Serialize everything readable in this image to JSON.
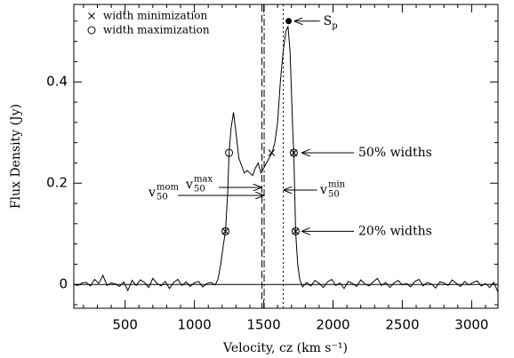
{
  "chart_data": {
    "type": "line",
    "xlabel": "Velocity, cz (km s⁻¹)",
    "ylabel": "Flux Density (Jy)",
    "xlim": [
      130,
      3190
    ],
    "ylim": [
      -0.047,
      0.553
    ],
    "xticks": [
      500,
      1000,
      1500,
      2000,
      2500,
      3000
    ],
    "yticks": [
      0,
      0.2,
      0.4
    ],
    "zero_line": true,
    "color": "#000000",
    "x": [
      130,
      160,
      190,
      220,
      250,
      280,
      310,
      340,
      370,
      400,
      430,
      460,
      490,
      520,
      550,
      580,
      610,
      640,
      670,
      700,
      730,
      760,
      790,
      820,
      850,
      880,
      910,
      940,
      970,
      1000,
      1030,
      1060,
      1090,
      1120,
      1150,
      1170,
      1190,
      1210,
      1224,
      1240,
      1250,
      1265,
      1282,
      1300,
      1320,
      1340,
      1360,
      1380,
      1400,
      1420,
      1440,
      1460,
      1480,
      1500,
      1520,
      1540,
      1560,
      1580,
      1600,
      1620,
      1640,
      1660,
      1675,
      1690,
      1700,
      1710,
      1717,
      1730,
      1745,
      1760,
      1780,
      1810,
      1840,
      1870,
      1900,
      1930,
      1960,
      1990,
      2020,
      2050,
      2080,
      2110,
      2140,
      2170,
      2200,
      2230,
      2260,
      2290,
      2320,
      2350,
      2380,
      2410,
      2440,
      2470,
      2500,
      2530,
      2560,
      2590,
      2620,
      2650,
      2680,
      2710,
      2740,
      2770,
      2800,
      2830,
      2860,
      2890,
      2920,
      2950,
      2980,
      3010,
      3040,
      3070,
      3100,
      3130,
      3160,
      3190
    ],
    "values": [
      0,
      -0.002,
      0.003,
      0.004,
      -0.003,
      0.01,
      0.002,
      0.018,
      -0.002,
      0.003,
      0.001,
      -0.004,
      0.005,
      -0.012,
      0.008,
      -0.002,
      0.009,
      0.004,
      -0.006,
      0.012,
      0.002,
      -0.003,
      0.006,
      -0.008,
      0.004,
      0.01,
      -0.002,
      0.005,
      -0.004,
      0.003,
      0.006,
      -0.005,
      0.002,
      0.004,
      -0.001,
      0.01,
      0.04,
      0.08,
      0.105,
      0.18,
      0.26,
      0.31,
      0.34,
      0.3,
      0.25,
      0.235,
      0.22,
      0.225,
      0.22,
      0.215,
      0.23,
      0.24,
      0.22,
      0.23,
      0.24,
      0.25,
      0.26,
      0.28,
      0.32,
      0.4,
      0.46,
      0.5,
      0.51,
      0.46,
      0.38,
      0.3,
      0.26,
      0.105,
      0.04,
      0.01,
      -0.005,
      0.004,
      -0.003,
      0.008,
      0.002,
      -0.006,
      0.005,
      0.01,
      -0.002,
      0.003,
      -0.008,
      0.006,
      0.002,
      -0.004,
      0.009,
      0.001,
      -0.003,
      0.005,
      0.012,
      -0.002,
      0.004,
      -0.006,
      0.003,
      0.008,
      -0.001,
      0.002,
      -0.005,
      0.006,
      0.01,
      -0.003,
      0.004,
      0.001,
      -0.007,
      0.005,
      0.003,
      -0.002,
      0.009,
      0.002,
      -0.004,
      0.006,
      -0.001,
      0.004,
      0.007,
      -0.003,
      0.002,
      -0.006,
      0.004,
      -0.015
    ],
    "markers": [
      {
        "name": "width minimization",
        "symbol": "cross",
        "x": [
          1224,
          1557,
          1717,
          1730
        ],
        "values": [
          0.105,
          0.26,
          0.26,
          0.105
        ]
      },
      {
        "name": "width maximization",
        "symbol": "circle",
        "x": [
          1224,
          1250,
          1717,
          1730
        ],
        "values": [
          0.105,
          0.26,
          0.26,
          0.105
        ]
      }
    ],
    "peak": {
      "label": "S",
      "label_sub": "p",
      "x": 1680,
      "value": 0.52
    },
    "vlines": [
      {
        "x": 1487,
        "style": "dashed",
        "label": "v",
        "sub": "50",
        "sup": "max"
      },
      {
        "x": 1503,
        "style": "dashdot",
        "label": "v",
        "sub": "50",
        "sup": "mom"
      },
      {
        "x": 1641,
        "style": "dotted",
        "label": "v",
        "sub": "50",
        "sup": "min"
      }
    ],
    "annotations": [
      {
        "text": "50% widths",
        "y": 0.26
      },
      {
        "text": "20% widths",
        "y": 0.105
      }
    ]
  }
}
